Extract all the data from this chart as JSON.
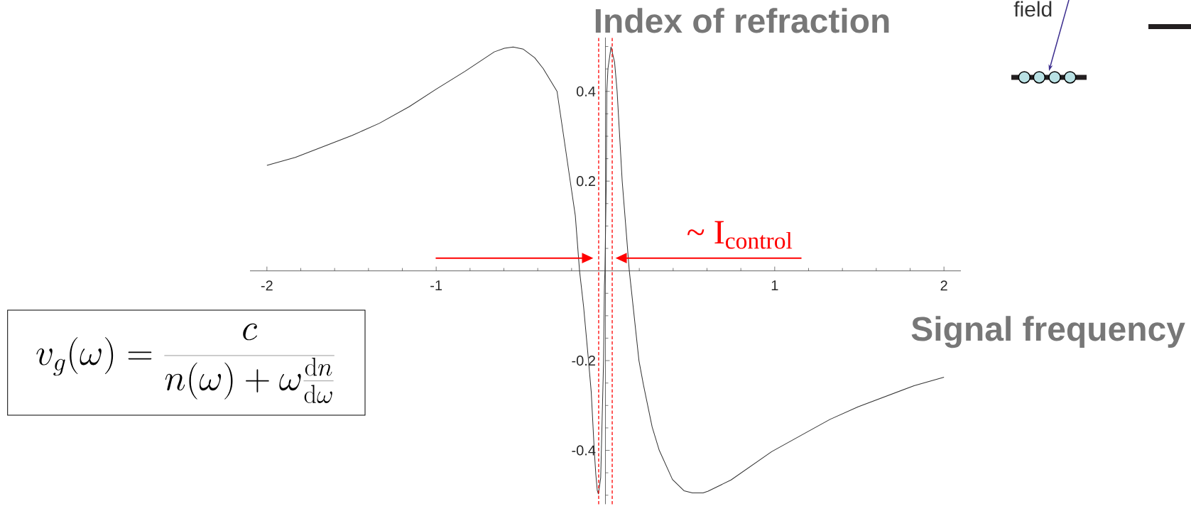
{
  "chart_data": {
    "type": "line",
    "xlabel": "Signal frequency",
    "ylabel": "Index of refraction",
    "x": [
      -2,
      -1.832,
      -1.653,
      -1.496,
      -1.335,
      -1.159,
      -1,
      -0.829,
      -0.657,
      -0.597,
      -0.545,
      -0.485,
      -0.418,
      -0.368,
      -0.286,
      -0.246,
      -0.208,
      -0.178,
      -0.153,
      -0.129,
      -0.1,
      -0.084,
      -0.066,
      -0.057,
      -0.048,
      -0.042,
      -0.035,
      -0.028,
      -0.024,
      -0.011,
      -0.006,
      -0.003,
      0.005,
      0.008,
      0.015,
      0.033,
      0.054,
      0.069,
      0.099,
      0.141,
      0.198,
      0.224,
      0.276,
      0.318,
      0.396,
      0.464,
      0.514,
      0.577,
      0.607,
      0.742,
      0.982,
      1.192,
      1.327,
      1.492,
      1.823,
      2
    ],
    "values": [
      0.235,
      0.253,
      0.279,
      0.302,
      0.329,
      0.366,
      0.405,
      0.445,
      0.488,
      0.496,
      0.499,
      0.494,
      0.475,
      0.451,
      0.4,
      0.298,
      0.2,
      0.123,
      0,
      -0.08,
      -0.2,
      -0.27,
      -0.4,
      -0.453,
      -0.49,
      -0.497,
      -0.48,
      -0.461,
      -0.4,
      -0.2,
      -0.032,
      0,
      0.2,
      0.4,
      0.451,
      0.499,
      0.465,
      0.4,
      0.2,
      0,
      -0.2,
      -0.253,
      -0.348,
      -0.4,
      -0.465,
      -0.49,
      -0.495,
      -0.495,
      -0.491,
      -0.466,
      -0.403,
      -0.359,
      -0.331,
      -0.303,
      -0.256,
      -0.237
    ],
    "color": "#333333",
    "xlim": [
      -2.1,
      2.1
    ],
    "ylim": [
      -0.52,
      0.52
    ],
    "xticks": [
      -2,
      {
        "value": -1.8,
        "label": null
      },
      {
        "value": -1.6,
        "label": null
      },
      {
        "value": -1.4,
        "label": null
      },
      {
        "value": -1.2,
        "label": null
      },
      -1,
      {
        "value": -0.8,
        "label": null
      },
      {
        "value": -0.6,
        "label": null
      },
      {
        "value": -0.4,
        "label": null
      },
      {
        "value": -0.2,
        "label": null
      },
      {
        "value": 0.2,
        "label": null
      },
      {
        "value": 0.4,
        "label": null
      },
      {
        "value": 0.6,
        "label": null
      },
      {
        "value": 0.8,
        "label": null
      },
      1,
      {
        "value": 1.2,
        "label": null
      },
      {
        "value": 1.4,
        "label": null
      },
      {
        "value": 1.6,
        "label": null
      },
      {
        "value": 1.8,
        "label": null
      },
      2
    ],
    "yticks": [
      {
        "value": -0.5,
        "label": null
      },
      {
        "value": -0.45,
        "label": null
      },
      -0.4,
      {
        "value": -0.35,
        "label": null
      },
      {
        "value": -0.3,
        "label": null
      },
      {
        "value": -0.25,
        "label": null
      },
      -0.2,
      {
        "value": -0.15,
        "label": null
      },
      {
        "value": -0.1,
        "label": null
      },
      {
        "value": -0.05,
        "label": null
      },
      {
        "value": 0.05,
        "label": null
      },
      {
        "value": 0.1,
        "label": null
      },
      {
        "value": 0.15,
        "label": null
      },
      0.2,
      {
        "value": 0.25,
        "label": null
      },
      {
        "value": 0.3,
        "label": null
      },
      {
        "value": 0.35,
        "label": null
      },
      0.4,
      {
        "value": 0.45,
        "label": null
      },
      {
        "value": 0.5,
        "label": null
      }
    ],
    "ref_lines": [
      {
        "axis": "x",
        "value": -0.04,
        "color": "#ff0000",
        "line_style": "dashed"
      },
      {
        "axis": "x",
        "value": 0.04,
        "label": "~ I$_{control}$",
        "color": "#ff0000",
        "line_style": "dashed"
      }
    ],
    "annotations": [
      "v_g(\\omega) = \\frac{c}{n(\\omega) + \\omega \\frac{\\mathrm{d}n}{\\mathrm{d}\\omega}}",
      "field"
    ]
  }
}
